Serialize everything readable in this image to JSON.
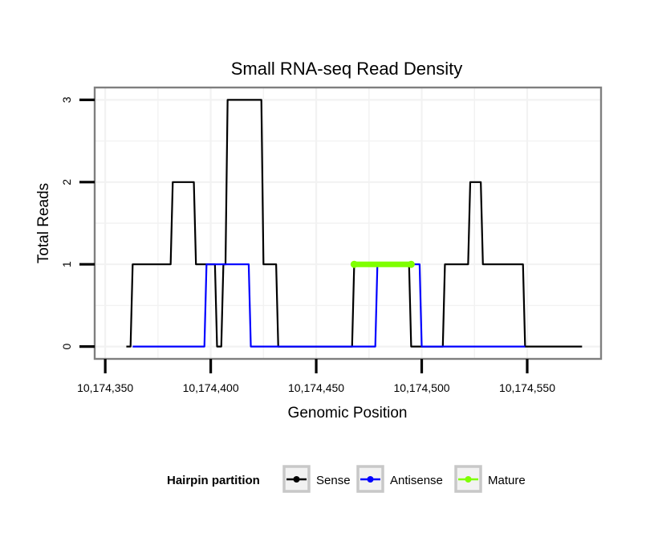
{
  "chart_data": {
    "type": "line",
    "title": "Small RNA-seq Read Density",
    "xlabel": "Genomic Position",
    "ylabel": "Total Reads",
    "xlim": [
      10174345,
      10174585
    ],
    "ylim": [
      -0.15,
      3.15
    ],
    "x_ticks": [
      10174350,
      10174400,
      10174450,
      10174500,
      10174550
    ],
    "x_tick_labels": [
      "10,174,350",
      "10,174,400",
      "10,174,450",
      "10,174,500",
      "10,174,550"
    ],
    "y_ticks": [
      0,
      1,
      2,
      3
    ],
    "y_tick_labels": [
      "0",
      "1",
      "2",
      "3"
    ],
    "grid": true,
    "legend": {
      "title": "Hairpin partition",
      "position": "bottom",
      "entries": [
        {
          "label": "Sense",
          "color": "#000000"
        },
        {
          "label": "Antisense",
          "color": "#0000ff"
        },
        {
          "label": "Mature",
          "color": "#7fff00"
        }
      ]
    },
    "series": [
      {
        "name": "Sense",
        "color": "#000000",
        "x": [
          10174360,
          10174362,
          10174363,
          10174381,
          10174382,
          10174392,
          10174393,
          10174402,
          10174403,
          10174405,
          10174406,
          10174407,
          10174408,
          10174424,
          10174425,
          10174431,
          10174432,
          10174467,
          10174468,
          10174494,
          10174495,
          10174510,
          10174511,
          10174522,
          10174523,
          10174528,
          10174529,
          10174548,
          10174549,
          10174576
        ],
        "y": [
          0,
          0,
          1,
          1,
          2,
          2,
          1,
          1,
          0,
          0,
          1,
          1,
          3,
          3,
          1,
          1,
          0,
          0,
          1,
          1,
          0,
          0,
          1,
          1,
          2,
          2,
          1,
          1,
          0,
          0
        ]
      },
      {
        "name": "Antisense",
        "color": "#0000ff",
        "x": [
          10174363,
          10174397,
          10174398,
          10174418,
          10174419,
          10174478,
          10174479,
          10174499,
          10174500,
          10174549
        ],
        "y": [
          0,
          0,
          1,
          1,
          0,
          0,
          1,
          1,
          0,
          0
        ]
      },
      {
        "name": "Mature",
        "color": "#7fff00",
        "x": [
          10174468,
          10174495
        ],
        "y": [
          1,
          1
        ]
      }
    ]
  }
}
